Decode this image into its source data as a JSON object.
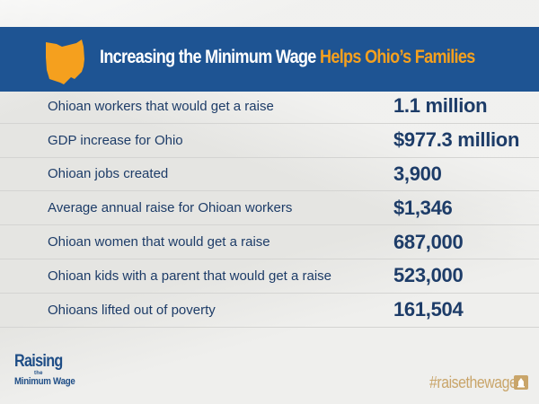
{
  "header": {
    "title_part1": "Increasing the Minimum Wage",
    "title_part2": "Helps Ohio’s Families",
    "state_icon": "ohio-state-shape-icon"
  },
  "stats": [
    {
      "label": "Ohioan workers that would get a raise",
      "value": "1.1 million"
    },
    {
      "label": "GDP increase for Ohio",
      "value": "$977.3 million"
    },
    {
      "label": "Ohioan jobs created",
      "value": "3,900"
    },
    {
      "label": "Average annual raise for Ohioan workers",
      "value": "$1,346"
    },
    {
      "label": "Ohioan women that would get a raise",
      "value": "687,000"
    },
    {
      "label": "Ohioan kids with a parent that would get a raise",
      "value": "523,000"
    },
    {
      "label": "Ohioans lifted out of poverty",
      "value": "161,504"
    }
  ],
  "footer": {
    "logo_line1": "Raising",
    "logo_line2": "the",
    "logo_line3": "Minimum Wage",
    "hashtag": "#raisethewage",
    "badge_icon": "capitol-building-icon"
  },
  "colors": {
    "header_bg": "#1e5493",
    "accent_orange": "#f5a01e",
    "text_navy": "#1d3c68",
    "hashtag_gold": "#c9a56a"
  }
}
